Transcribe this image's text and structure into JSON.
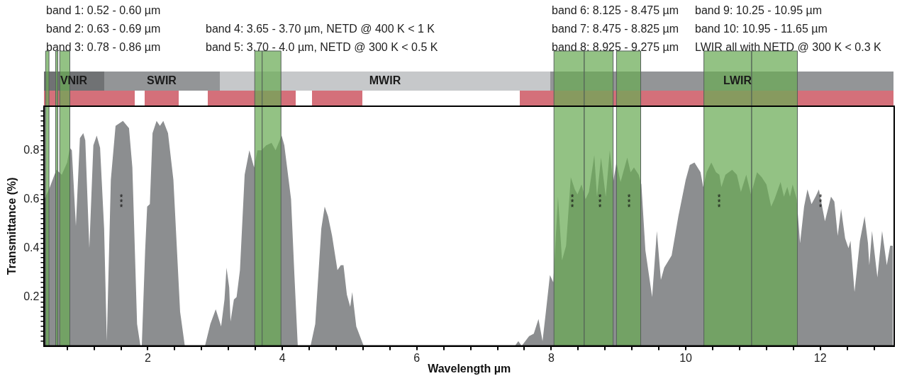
{
  "chart_data": {
    "type": "area",
    "xlabel": "Wavelength µm",
    "ylabel": "Transmittance (%)",
    "xlim": [
      0.46,
      13.1
    ],
    "ylim": [
      0,
      0.98
    ],
    "xticks": [
      {
        "value": 0.8,
        "label": null
      },
      {
        "value": 1.2,
        "label": null
      },
      {
        "value": 1.6,
        "label": null
      },
      2,
      {
        "value": 2.4,
        "label": null
      },
      {
        "value": 2.8,
        "label": null
      },
      {
        "value": 3.2,
        "label": null
      },
      {
        "value": 3.6,
        "label": null
      },
      4,
      {
        "value": 4.4,
        "label": null
      },
      {
        "value": 4.8,
        "label": null
      },
      {
        "value": 5.2,
        "label": null
      },
      {
        "value": 5.6,
        "label": null
      },
      6,
      {
        "value": 6.4,
        "label": null
      },
      {
        "value": 6.8,
        "label": null
      },
      {
        "value": 7.2,
        "label": null
      },
      {
        "value": 7.6,
        "label": null
      },
      8,
      {
        "value": 8.4,
        "label": null
      },
      {
        "value": 8.8,
        "label": null
      },
      {
        "value": 9.2,
        "label": null
      },
      {
        "value": 9.6,
        "label": null
      },
      10,
      {
        "value": 10.4,
        "label": null
      },
      {
        "value": 10.8,
        "label": null
      },
      {
        "value": 11.2,
        "label": null
      },
      {
        "value": 11.6,
        "label": null
      },
      12,
      {
        "value": 12.4,
        "label": null
      },
      {
        "value": 12.8,
        "label": null
      }
    ],
    "yticks": [
      {
        "value": 0.02,
        "label": null
      },
      {
        "value": 0.04,
        "label": null
      },
      {
        "value": 0.06,
        "label": null
      },
      {
        "value": 0.08,
        "label": null
      },
      {
        "value": 0.1,
        "label": null
      },
      {
        "value": 0.12,
        "label": null
      },
      {
        "value": 0.14,
        "label": null
      },
      {
        "value": 0.16,
        "label": null
      },
      {
        "value": 0.18,
        "label": null
      },
      0.2,
      {
        "value": 0.22,
        "label": null
      },
      {
        "value": 0.24,
        "label": null
      },
      {
        "value": 0.26,
        "label": null
      },
      {
        "value": 0.28,
        "label": null
      },
      {
        "value": 0.3,
        "label": null
      },
      {
        "value": 0.32,
        "label": null
      },
      {
        "value": 0.34,
        "label": null
      },
      {
        "value": 0.36,
        "label": null
      },
      {
        "value": 0.38,
        "label": null
      },
      0.4,
      {
        "value": 0.42,
        "label": null
      },
      {
        "value": 0.44,
        "label": null
      },
      {
        "value": 0.46,
        "label": null
      },
      {
        "value": 0.48,
        "label": null
      },
      {
        "value": 0.5,
        "label": null
      },
      {
        "value": 0.52,
        "label": null
      },
      {
        "value": 0.54,
        "label": null
      },
      {
        "value": 0.56,
        "label": null
      },
      {
        "value": 0.58,
        "label": null
      },
      0.6,
      {
        "value": 0.62,
        "label": null
      },
      {
        "value": 0.64,
        "label": null
      },
      {
        "value": 0.66,
        "label": null
      },
      {
        "value": 0.68,
        "label": null
      },
      {
        "value": 0.7,
        "label": null
      },
      {
        "value": 0.72,
        "label": null
      },
      {
        "value": 0.74,
        "label": null
      },
      {
        "value": 0.76,
        "label": null
      },
      {
        "value": 0.78,
        "label": null
      },
      0.8,
      {
        "value": 0.82,
        "label": null
      },
      {
        "value": 0.84,
        "label": null
      },
      {
        "value": 0.86,
        "label": null
      },
      {
        "value": 0.88,
        "label": null
      },
      {
        "value": 0.9,
        "label": null
      },
      {
        "value": 0.92,
        "label": null
      },
      {
        "value": 0.94,
        "label": null
      },
      {
        "value": 0.96,
        "label": null
      }
    ],
    "grid": false,
    "legend": false,
    "series": [
      {
        "color": "#8c8e90",
        "x": [
          0.46,
          0.53,
          0.64,
          0.72,
          0.8,
          0.84,
          0.87,
          0.93,
          0.99,
          1.04,
          1.07,
          1.13,
          1.19,
          1.24,
          1.29,
          1.35,
          1.39,
          1.45,
          1.52,
          1.63,
          1.72,
          1.77,
          1.84,
          1.89,
          1.91,
          1.96,
          1.99,
          2.03,
          2.07,
          2.13,
          2.18,
          2.23,
          2.3,
          2.38,
          2.48,
          2.55,
          2.85,
          2.93,
          3.01,
          3.09,
          3.14,
          3.17,
          3.21,
          3.23,
          3.28,
          3.32,
          3.37,
          3.44,
          3.51,
          3.58,
          3.63,
          3.69,
          3.76,
          3.84,
          3.9,
          3.99,
          4.03,
          4.13,
          4.18,
          4.23,
          4.42,
          4.49,
          4.58,
          4.63,
          4.68,
          4.74,
          4.82,
          4.87,
          4.91,
          4.96,
          5.01,
          5.04,
          5.1,
          5.21,
          7.46,
          7.51,
          7.56,
          7.67,
          7.74,
          7.81,
          7.87,
          7.92,
          7.98,
          8.03,
          8.1,
          8.16,
          8.22,
          8.29,
          8.35,
          8.39,
          8.45,
          8.51,
          8.56,
          8.64,
          8.68,
          8.74,
          8.81,
          8.87,
          8.92,
          8.97,
          9.03,
          9.13,
          9.18,
          9.23,
          9.3,
          9.34,
          9.4,
          9.5,
          9.57,
          9.63,
          9.68,
          9.79,
          9.89,
          10.0,
          10.06,
          10.13,
          10.22,
          10.26,
          10.31,
          10.38,
          10.45,
          10.5,
          10.53,
          10.59,
          10.69,
          10.76,
          10.82,
          10.9,
          10.97,
          11.06,
          11.13,
          11.2,
          11.27,
          11.32,
          11.41,
          11.46,
          11.51,
          11.55,
          11.59,
          11.65,
          11.7,
          11.76,
          11.81,
          11.87,
          11.93,
          11.98,
          12.07,
          12.16,
          12.21,
          12.26,
          12.31,
          12.37,
          12.42,
          12.45,
          12.51,
          12.59,
          12.66,
          12.71,
          12.73,
          12.77,
          12.85,
          12.92,
          12.99,
          13.04,
          13.08
        ],
        "values": [
          0.6,
          0.64,
          0.72,
          0.7,
          0.75,
          0.81,
          0.8,
          0.49,
          0.85,
          0.87,
          0.84,
          0.4,
          0.82,
          0.86,
          0.81,
          0.48,
          0.02,
          0.68,
          0.9,
          0.92,
          0.89,
          0.73,
          0.09,
          0,
          0,
          0.39,
          0.57,
          0.58,
          0.87,
          0.92,
          0.9,
          0.92,
          0.87,
          0.68,
          0.14,
          0,
          0,
          0.09,
          0.15,
          0.08,
          0.19,
          0.32,
          0.24,
          0.1,
          0.19,
          0.2,
          0.31,
          0.7,
          0.8,
          0.73,
          0.8,
          0.8,
          0.82,
          0.83,
          0.8,
          0.86,
          0.82,
          0.6,
          0.29,
          0,
          0,
          0.09,
          0.48,
          0.57,
          0.53,
          0.45,
          0.31,
          0.33,
          0.33,
          0.21,
          0.16,
          0.22,
          0.08,
          0,
          0,
          0.02,
          0,
          0.04,
          0.05,
          0.11,
          0.02,
          0.14,
          0.29,
          0.26,
          0.61,
          0.35,
          0.41,
          0.69,
          0.64,
          0.62,
          0.66,
          0.6,
          0.63,
          0.78,
          0.61,
          0.77,
          0.61,
          0.8,
          0.67,
          0.75,
          0.67,
          0.77,
          0.71,
          0.73,
          0.7,
          0.66,
          0.39,
          0.2,
          0.47,
          0.27,
          0.32,
          0.37,
          0.53,
          0.68,
          0.74,
          0.75,
          0.71,
          0.65,
          0.71,
          0.75,
          0.71,
          0.7,
          0.65,
          0.7,
          0.72,
          0.7,
          0.63,
          0.7,
          0.62,
          0.71,
          0.69,
          0.66,
          0.57,
          0.6,
          0.67,
          0.61,
          0.65,
          0.61,
          0.66,
          0.6,
          0.42,
          0.57,
          0.64,
          0.58,
          0.61,
          0.64,
          0.51,
          0.61,
          0.59,
          0.45,
          0.56,
          0.44,
          0.4,
          0.43,
          0.22,
          0.43,
          0.53,
          0.42,
          0.33,
          0.47,
          0.28,
          0.47,
          0.33,
          0.41,
          0.41
        ]
      }
    ],
    "bands": [
      {
        "axis": "x",
        "from": 0.48,
        "to": 0.53,
        "color": "#6aab55"
      },
      {
        "axis": "x",
        "from": 0.63,
        "to": 0.66,
        "color": "#6aab55"
      },
      {
        "axis": "x",
        "from": 0.69,
        "to": 0.84,
        "color": "#6aab55"
      },
      {
        "axis": "x",
        "from": 3.59,
        "to": 3.7,
        "color": "#6aab55"
      },
      {
        "axis": "x",
        "from": 3.7,
        "to": 3.98,
        "color": "#6aab55"
      },
      {
        "axis": "x",
        "from": 8.04,
        "to": 8.49,
        "color": "#6aab55"
      },
      {
        "axis": "x",
        "from": 8.49,
        "to": 8.92,
        "color": "#6aab55"
      },
      {
        "axis": "x",
        "from": 8.97,
        "to": 9.33,
        "color": "#6aab55"
      },
      {
        "axis": "x",
        "from": 10.27,
        "to": 10.98,
        "color": "#6aab55"
      },
      {
        "axis": "x",
        "from": 10.98,
        "to": 11.66,
        "color": "#6aab55"
      }
    ],
    "annotations": [
      "band 1: 0.52 - 0.60 µm",
      "band 2: 0.63 - 0.69 µm",
      "band 3: 0.78 - 0.86 µm",
      "band 4: 3.65 - 3.70 µm, NETD @ 400 K < 1 K",
      "band 5: 3.70 - 4.0 µm, NETD @ 300 K < 0.5 K",
      "band 6: 8.125 - 8.475 µm",
      "band 7: 8.475 - 8.825 µm",
      "band 8: 8.925 - 9.275 µm",
      "band 9: 10.25 - 10.95 µm",
      "band 10: 10.95 - 11.65 µm",
      "LWIR all with NETD @ 300 K < 0.3 K",
      "VNIR",
      "SWIR",
      "MWIR",
      "LWIR",
      "***",
      "***",
      "***",
      "***",
      "***",
      "***"
    ]
  }
}
